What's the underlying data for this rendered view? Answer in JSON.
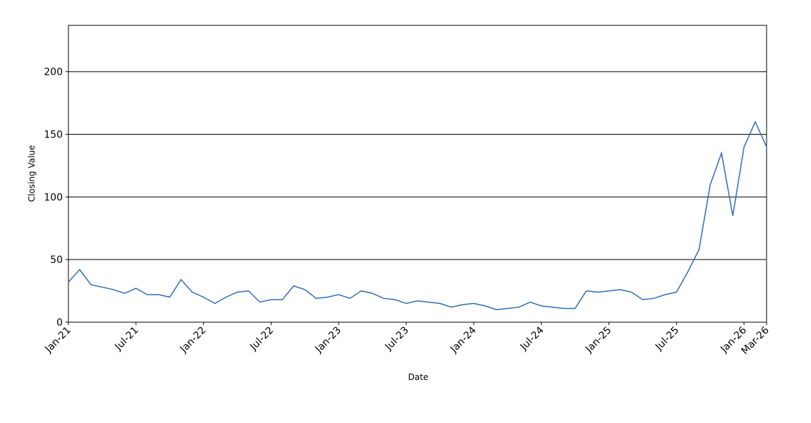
{
  "chart_data": {
    "type": "line",
    "x_label": "Date",
    "y_label": "Closing Value",
    "x": [
      "2021-01",
      "2021-02",
      "2021-03",
      "2021-04",
      "2021-05",
      "2021-06",
      "2021-07",
      "2021-08",
      "2021-09",
      "2021-10",
      "2021-11",
      "2021-12",
      "2022-01",
      "2022-02",
      "2022-03",
      "2022-04",
      "2022-05",
      "2022-06",
      "2022-07",
      "2022-08",
      "2022-09",
      "2022-10",
      "2022-11",
      "2022-12",
      "2023-01",
      "2023-02",
      "2023-03",
      "2023-04",
      "2023-05",
      "2023-06",
      "2023-07",
      "2023-08",
      "2023-09",
      "2023-10",
      "2023-11",
      "2023-12",
      "2024-01",
      "2024-02",
      "2024-03",
      "2024-04",
      "2024-05",
      "2024-06",
      "2024-07",
      "2024-08",
      "2024-09",
      "2024-10",
      "2024-11",
      "2024-12",
      "2025-01",
      "2025-02",
      "2025-03",
      "2025-04",
      "2025-05",
      "2025-06",
      "2025-07",
      "2025-08",
      "2025-09",
      "2025-10",
      "2025-11",
      "2025-12",
      "2026-01",
      "2026-02",
      "2026-03"
    ],
    "series": [
      {
        "name": "Closing Value",
        "color": "#2f6db3",
        "values": [
          32,
          42,
          30,
          28,
          26,
          23,
          27,
          22,
          22,
          20,
          34,
          24,
          20,
          15,
          20,
          24,
          25,
          16,
          18,
          18,
          29,
          26,
          19,
          20,
          22,
          19,
          25,
          23,
          19,
          18,
          15,
          17,
          16,
          15,
          12,
          14,
          15,
          13,
          10,
          11,
          12,
          16,
          13,
          12,
          11,
          11,
          25,
          24,
          25,
          26,
          24,
          18,
          19,
          22,
          24,
          40,
          58,
          110,
          135,
          85,
          140,
          160,
          140
        ]
      }
    ],
    "xticks": [
      {
        "value": "2021-01",
        "label": "Jan-21"
      },
      {
        "value": "2021-07",
        "label": "Jul-21"
      },
      {
        "value": "2022-01",
        "label": "Jan-22"
      },
      {
        "value": "2022-07",
        "label": "Jul-22"
      },
      {
        "value": "2023-01",
        "label": "Jan-23"
      },
      {
        "value": "2023-07",
        "label": "Jul-23"
      },
      {
        "value": "2024-01",
        "label": "Jan-24"
      },
      {
        "value": "2024-07",
        "label": "Jul-24"
      },
      {
        "value": "2025-01",
        "label": "Jan-25"
      },
      {
        "value": "2025-07",
        "label": "Jul-25"
      },
      {
        "value": "2026-01",
        "label": "Jan-26"
      },
      {
        "value": "2026-03",
        "label": "Mar-26"
      }
    ],
    "ylim": [
      0,
      237
    ],
    "yticks": [
      0,
      50,
      100,
      150,
      200
    ],
    "grid": true
  }
}
